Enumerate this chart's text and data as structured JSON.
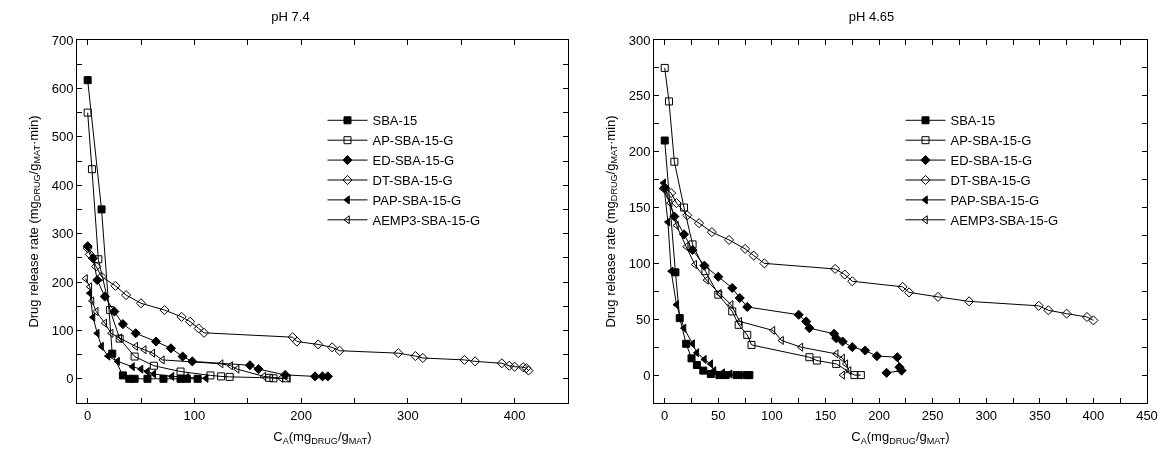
{
  "chart_data": [
    {
      "type": "line",
      "title": "pH 7.4",
      "xlabel": "C$_{A}$(mg$_{DRUG}$/g$_{MAT}$)",
      "ylabel": "Drug release rate (mg$_{DRUG}$/g$_{MAT}$·min)",
      "xlim": [
        -10,
        450
      ],
      "xticks": [
        0,
        {
          "value": 50,
          "label": null
        },
        100,
        {
          "value": 150,
          "label": null
        },
        200,
        {
          "value": 250,
          "label": null
        },
        300,
        {
          "value": 350,
          "label": null
        },
        400,
        {
          "value": 450,
          "label": null
        }
      ],
      "ylim": [
        -50,
        700
      ],
      "yticks": [
        {
          "value": -50,
          "label": null
        },
        0,
        {
          "value": 50,
          "label": null
        },
        100,
        {
          "value": 150,
          "label": null
        },
        200,
        {
          "value": 250,
          "label": null
        },
        300,
        {
          "value": 350,
          "label": null
        },
        400,
        {
          "value": 450,
          "label": null
        },
        500,
        {
          "value": 550,
          "label": null
        },
        600,
        {
          "value": 650,
          "label": null
        },
        700
      ],
      "grid": false,
      "legend": "top right",
      "line_style": "solid",
      "series": [
        {
          "name": "SBA-15",
          "color": "#000000",
          "marker": "square",
          "x": [
            0,
            13,
            23,
            33,
            39,
            44,
            56,
            71,
            87,
            93,
            103
          ],
          "values": [
            617,
            350,
            52,
            7,
            0,
            0,
            0,
            0,
            0,
            0,
            0
          ]
        },
        {
          "name": "AP-SBA-15-G",
          "color": "#000000",
          "marker": "square-open",
          "x": [
            0,
            4,
            10,
            21,
            30,
            44,
            62,
            87,
            115,
            125,
            133,
            170,
            174,
            186
          ],
          "values": [
            550,
            433,
            247,
            142,
            83,
            46,
            27,
            15,
            7,
            5,
            4,
            2,
            1,
            1
          ]
        },
        {
          "name": "ED-SBA-15-G",
          "color": "#000000",
          "marker": "diamond",
          "x": [
            0,
            5,
            9,
            16,
            25,
            33,
            45,
            64,
            78,
            89,
            98,
            152,
            160,
            185,
            213,
            220,
            225
          ],
          "values": [
            274,
            249,
            204,
            170,
            139,
            113,
            94,
            77,
            63,
            46,
            36,
            28,
            20,
            8,
            5,
            5,
            5
          ]
        },
        {
          "name": "DT-SBA-15-G",
          "color": "#000000",
          "marker": "diamond-open",
          "x": [
            0,
            2,
            8,
            13,
            26,
            36,
            50,
            72,
            88,
            96,
            104,
            109,
            192,
            196,
            216,
            229,
            236,
            291,
            307,
            314,
            353,
            363,
            388,
            395,
            400,
            408,
            411,
            413
          ],
          "values": [
            270,
            257,
            232,
            211,
            192,
            173,
            156,
            142,
            128,
            118,
            104,
            95,
            86,
            77,
            71,
            65,
            58,
            53,
            47,
            43,
            39,
            36,
            32,
            27,
            25,
            24,
            22,
            17
          ]
        },
        {
          "name": "PAP-SBA-15-G",
          "color": "#000000",
          "marker": "triangle",
          "x": [
            2,
            5,
            9,
            13,
            19,
            28,
            42,
            50,
            56,
            62,
            79,
            93,
            111
          ],
          "values": [
            177,
            127,
            94,
            67,
            47,
            36,
            25,
            20,
            15,
            10,
            5,
            3,
            1
          ]
        },
        {
          "name": "AEMP3-SBA-15-G",
          "color": "#000000",
          "marker": "triangle-open",
          "x": [
            -2,
            2,
            4,
            8,
            16,
            22,
            30,
            45,
            53,
            61,
            70,
            125,
            134,
            140,
            165,
            181,
            188
          ],
          "values": [
            207,
            190,
            161,
            139,
            115,
            94,
            84,
            67,
            60,
            53,
            39,
            31,
            27,
            20,
            5,
            1,
            1
          ]
        }
      ]
    },
    {
      "type": "line",
      "title": "pH 4.65",
      "xlabel": "C$_{A}$(mg$_{DRUG}$/g$_{MAT}$)",
      "ylabel": "Drug release rate (mg$_{DRUG}$/g$_{MAT}$·min)",
      "xlim": [
        -10,
        450
      ],
      "xticks": [
        0,
        {
          "value": 25,
          "label": null
        },
        50,
        {
          "value": 75,
          "label": null
        },
        100,
        {
          "value": 125,
          "label": null
        },
        150,
        {
          "value": 175,
          "label": null
        },
        200,
        {
          "value": 225,
          "label": null
        },
        250,
        {
          "value": 275,
          "label": null
        },
        300,
        {
          "value": 325,
          "label": null
        },
        350,
        {
          "value": 375,
          "label": null
        },
        400,
        {
          "value": 425,
          "label": null
        },
        450
      ],
      "ylim": [
        -25,
        300
      ],
      "yticks": [
        {
          "value": -25,
          "label": null
        },
        0,
        {
          "value": 25,
          "label": null
        },
        50,
        {
          "value": 75,
          "label": null
        },
        100,
        {
          "value": 125,
          "label": null
        },
        150,
        {
          "value": 175,
          "label": null
        },
        200,
        {
          "value": 225,
          "label": null
        },
        250,
        {
          "value": 275,
          "label": null
        },
        300
      ],
      "grid": false,
      "legend": "top right",
      "line_style": "solid",
      "series": [
        {
          "name": "SBA-15",
          "color": "#000000",
          "marker": "square",
          "x": [
            0,
            10,
            14,
            20,
            25,
            30,
            36,
            43,
            51,
            57,
            67,
            76,
            79
          ],
          "values": [
            210,
            92,
            51,
            28,
            15,
            9,
            4,
            1,
            0,
            0,
            0,
            0,
            0
          ]
        },
        {
          "name": "AP-SBA-15-G",
          "color": "#000000",
          "marker": "square-open",
          "x": [
            0,
            4,
            9,
            18,
            26,
            38,
            50,
            63,
            69,
            77,
            81,
            135,
            142,
            160,
            177,
            183
          ],
          "values": [
            275,
            245,
            191,
            150,
            117,
            93,
            72,
            57,
            45,
            36,
            27,
            16,
            13,
            10,
            0,
            0
          ]
        },
        {
          "name": "ED-SBA-15-G",
          "color": "#000000",
          "marker": "diamond",
          "x": [
            0,
            9,
            18,
            26,
            37,
            50,
            63,
            70,
            77,
            125,
            132,
            135,
            158,
            160,
            166,
            175,
            187,
            198,
            217,
            219,
            221,
            207
          ],
          "values": [
            168,
            142,
            126,
            112,
            98,
            88,
            78,
            69,
            61,
            54,
            48,
            42,
            37,
            33,
            30,
            25,
            22,
            17,
            16,
            7,
            4,
            2
          ]
        },
        {
          "name": "DT-SBA-15-G",
          "color": "#000000",
          "marker": "diamond-open",
          "x": [
            0,
            6,
            11,
            21,
            32,
            44,
            60,
            75,
            83,
            93,
            159,
            168,
            175,
            222,
            228,
            255,
            284,
            349,
            358,
            375,
            394,
            400
          ],
          "values": [
            167,
            163,
            154,
            143,
            136,
            128,
            121,
            113,
            107,
            100,
            95,
            90,
            84,
            79,
            74,
            70,
            66,
            62,
            58,
            55,
            52,
            49
          ]
        },
        {
          "name": "PAP-SBA-15-G",
          "color": "#000000",
          "marker": "triangle",
          "x": [
            -1,
            3,
            6,
            11,
            18,
            26,
            30,
            37,
            43,
            46,
            54,
            61,
            70,
            78
          ],
          "values": [
            172,
            137,
            93,
            63,
            42,
            28,
            20,
            14,
            10,
            4,
            2,
            1,
            0,
            0
          ]
        },
        {
          "name": "AEMP3-SBA-15-G",
          "color": "#000000",
          "marker": "triangle-open",
          "x": [
            -2,
            5,
            11,
            20,
            28,
            39,
            51,
            62,
            70,
            101,
            109,
            127,
            160,
            166,
            169,
            172,
            166
          ],
          "values": [
            167,
            154,
            134,
            115,
            99,
            85,
            73,
            63,
            48,
            40,
            31,
            25,
            19,
            15,
            10,
            4,
            0
          ]
        }
      ]
    }
  ]
}
